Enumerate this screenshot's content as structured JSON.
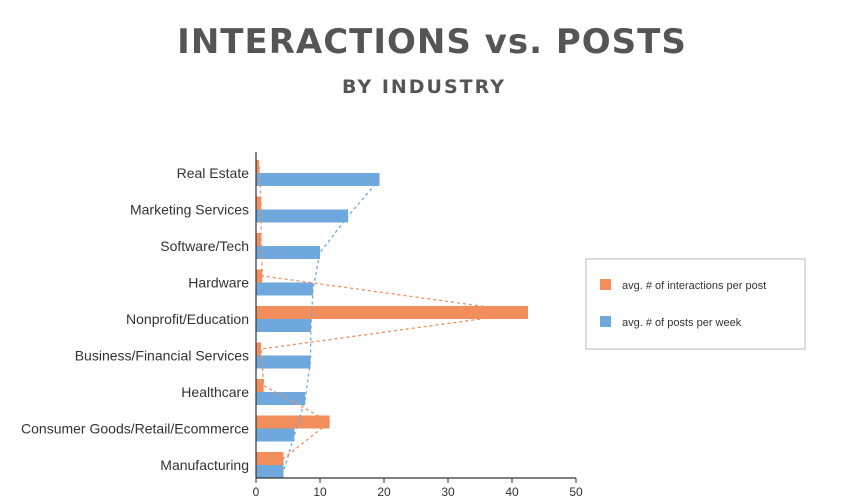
{
  "header": {
    "title": "INTERACTIONS vs. POSTS",
    "subtitle": "BY INDUSTRY"
  },
  "chart_data": {
    "type": "bar",
    "orientation": "horizontal",
    "title": "INTERACTIONS vs. POSTS",
    "subtitle": "BY INDUSTRY",
    "categories": [
      "Real Estate",
      "Marketing Services",
      "Software/Tech",
      "Hardware",
      "Nonprofit/Education",
      "Business/Financial Services",
      "Healthcare",
      "Consumer Goods/Retail/Ecommerce",
      "Manufacturing"
    ],
    "series": [
      {
        "name": "avg. # of interactions per post",
        "color": "#f28e5b",
        "values": [
          0.5,
          0.8,
          0.8,
          1.0,
          42.5,
          0.8,
          1.2,
          11.5,
          4.3
        ]
      },
      {
        "name": "avg. # of posts per week",
        "color": "#6fa8dc",
        "values": [
          19.3,
          14.4,
          10.0,
          8.9,
          8.6,
          8.5,
          7.7,
          6.0,
          4.3
        ]
      }
    ],
    "xlim": [
      0,
      50
    ],
    "xticks": [
      "0",
      "10",
      "20",
      "30",
      "40",
      "50"
    ],
    "trend_lines": true,
    "grid": false,
    "legend_position": "right"
  }
}
